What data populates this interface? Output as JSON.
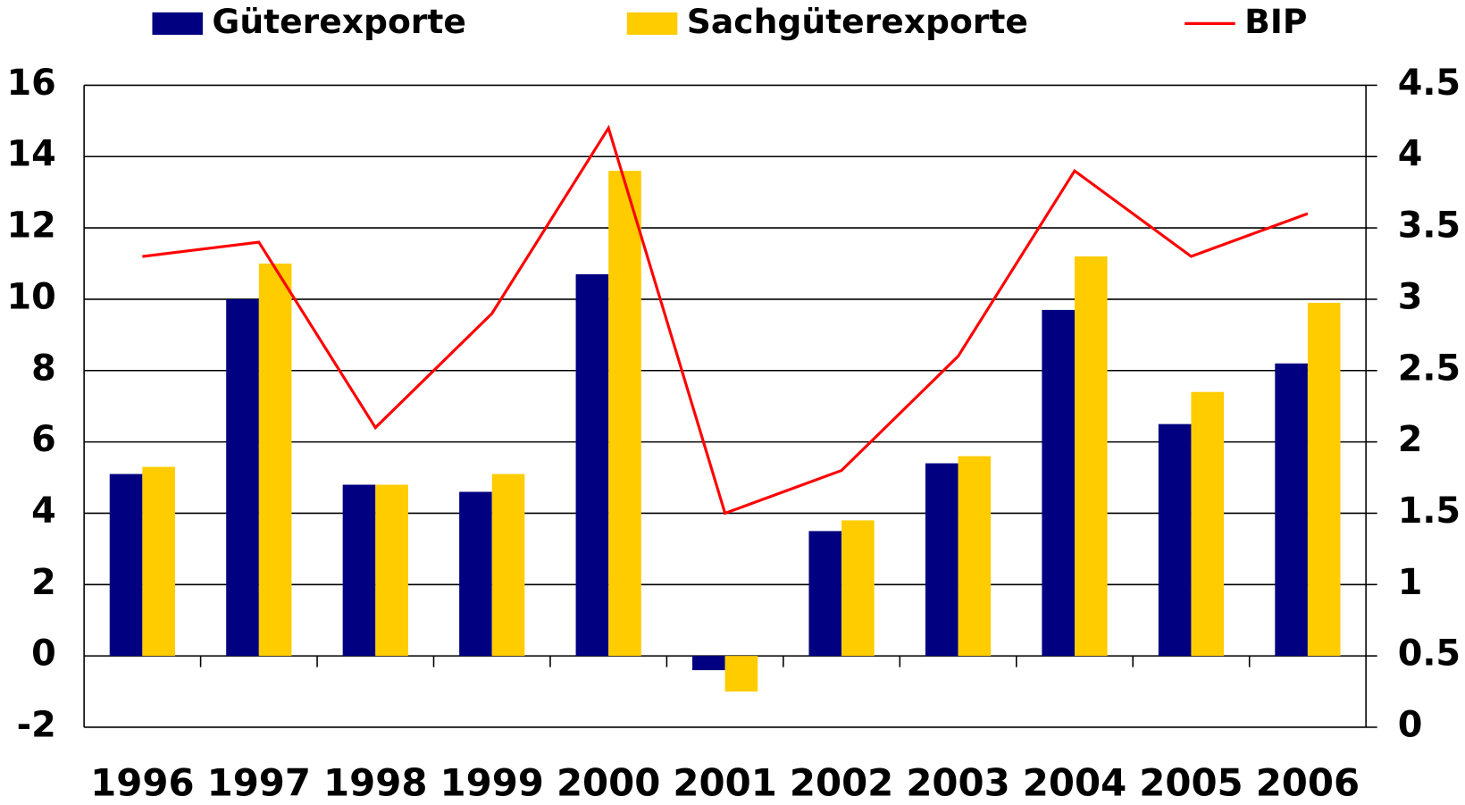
{
  "chart_data": {
    "type": "bar",
    "categories": [
      "1996",
      "1997",
      "1998",
      "1999",
      "2000",
      "2001",
      "2002",
      "2003",
      "2004",
      "2005",
      "2006"
    ],
    "series": [
      {
        "name": "Güterexporte",
        "color": "#000080",
        "values": [
          5.1,
          10.0,
          4.8,
          4.6,
          10.7,
          -0.4,
          3.5,
          5.4,
          9.7,
          6.5,
          8.2
        ]
      },
      {
        "name": "Sachgüterexporte",
        "color": "#ffcc00",
        "values": [
          5.3,
          11.0,
          4.8,
          5.1,
          13.6,
          -1.0,
          3.8,
          5.6,
          11.2,
          7.4,
          9.9
        ]
      },
      {
        "name": "BIP",
        "type": "line",
        "axis": "y2",
        "color": "#ff0000",
        "values": [
          3.3,
          3.4,
          2.1,
          2.9,
          4.2,
          1.5,
          1.8,
          2.6,
          3.9,
          3.3,
          3.6
        ]
      }
    ],
    "ylim": [
      -2,
      16
    ],
    "yticks": [
      -2,
      0,
      2,
      4,
      6,
      8,
      10,
      12,
      14,
      16
    ],
    "y2lim": [
      0,
      4.5
    ],
    "y2ticks": [
      0,
      0.5,
      1,
      1.5,
      2,
      2.5,
      3,
      3.5,
      4,
      4.5
    ],
    "grid": true,
    "legend": "top"
  }
}
